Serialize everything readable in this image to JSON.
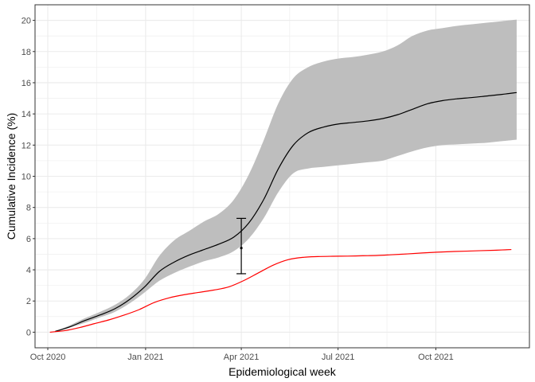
{
  "chart_data": {
    "type": "line",
    "title": "",
    "xlabel": "Epidemiological week",
    "ylabel": "Cumulative Incidence (%)",
    "x_ticks": [
      "2020-10-01",
      "2021-01-01",
      "2021-04-01",
      "2021-07-01",
      "2021-10-01"
    ],
    "x_tick_labels": [
      "Oct 2020",
      "Jan 2021",
      "Apr 2021",
      "Jul 2021",
      "Oct 2021"
    ],
    "xlim": [
      "2020-09-19",
      "2021-12-28"
    ],
    "y_ticks": [
      0,
      2,
      4,
      6,
      8,
      10,
      12,
      14,
      16,
      18,
      20
    ],
    "y_tick_labels": [
      "0",
      "2",
      "4",
      "6",
      "8",
      "10",
      "12",
      "14",
      "16",
      "18",
      "20"
    ],
    "ylim": [
      -1.0,
      21.0
    ],
    "grid": true,
    "legend": "none",
    "colors": {
      "series_black": "#000000",
      "series_red": "#ff0000",
      "ribbon": "#bebebe",
      "grid": "#ebebeb",
      "border": "#333333"
    },
    "series": [
      {
        "color": "#000000",
        "x": [
          "2020-10-08",
          "2020-10-22",
          "2020-11-05",
          "2020-11-19",
          "2020-12-03",
          "2020-12-17",
          "2020-12-31",
          "2021-01-14",
          "2021-01-28",
          "2021-02-11",
          "2021-02-25",
          "2021-03-11",
          "2021-03-25",
          "2021-04-08",
          "2021-04-22",
          "2021-05-06",
          "2021-05-20",
          "2021-06-03",
          "2021-06-17",
          "2021-07-01",
          "2021-07-15",
          "2021-07-29",
          "2021-08-12",
          "2021-08-26",
          "2021-09-09",
          "2021-09-23",
          "2021-10-07",
          "2021-10-21",
          "2021-11-04",
          "2021-11-18",
          "2021-12-02",
          "2021-12-16"
        ],
        "y": [
          0.05,
          0.35,
          0.75,
          1.1,
          1.5,
          2.1,
          2.9,
          3.9,
          4.5,
          4.95,
          5.3,
          5.65,
          6.1,
          7.0,
          8.5,
          10.5,
          12.0,
          12.8,
          13.15,
          13.35,
          13.45,
          13.55,
          13.7,
          13.95,
          14.3,
          14.65,
          14.85,
          14.97,
          15.05,
          15.15,
          15.25,
          15.37
        ]
      },
      {
        "color": "#ff0000",
        "x": [
          "2020-10-03",
          "2020-10-17",
          "2020-10-31",
          "2020-11-14",
          "2020-11-28",
          "2020-12-12",
          "2020-12-26",
          "2021-01-09",
          "2021-01-23",
          "2021-02-06",
          "2021-02-20",
          "2021-03-06",
          "2021-03-20",
          "2021-04-03",
          "2021-04-17",
          "2021-05-01",
          "2021-05-15",
          "2021-05-29",
          "2021-06-12",
          "2021-06-26",
          "2021-07-10",
          "2021-07-24",
          "2021-08-07",
          "2021-08-21",
          "2021-09-04",
          "2021-09-18",
          "2021-10-02",
          "2021-10-16",
          "2021-10-30",
          "2021-11-13",
          "2021-11-27",
          "2021-12-11"
        ],
        "y": [
          0.0,
          0.1,
          0.3,
          0.55,
          0.8,
          1.1,
          1.45,
          1.9,
          2.2,
          2.4,
          2.55,
          2.7,
          2.9,
          3.3,
          3.8,
          4.3,
          4.65,
          4.8,
          4.85,
          4.87,
          4.88,
          4.9,
          4.92,
          4.97,
          5.02,
          5.08,
          5.13,
          5.17,
          5.2,
          5.23,
          5.26,
          5.3
        ]
      }
    ],
    "ribbon": {
      "color": "#bebebe",
      "x": [
        "2020-10-08",
        "2020-10-22",
        "2020-11-05",
        "2020-11-19",
        "2020-12-03",
        "2020-12-17",
        "2020-12-31",
        "2021-01-14",
        "2021-01-28",
        "2021-02-11",
        "2021-02-25",
        "2021-03-11",
        "2021-03-25",
        "2021-04-08",
        "2021-04-22",
        "2021-05-06",
        "2021-05-20",
        "2021-06-03",
        "2021-06-17",
        "2021-07-01",
        "2021-07-15",
        "2021-07-29",
        "2021-08-12",
        "2021-08-26",
        "2021-09-09",
        "2021-09-23",
        "2021-10-07",
        "2021-10-21",
        "2021-11-04",
        "2021-11-18",
        "2021-12-02",
        "2021-12-16"
      ],
      "ymin": [
        0.0,
        0.3,
        0.6,
        0.95,
        1.3,
        1.85,
        2.55,
        3.3,
        3.8,
        4.2,
        4.55,
        4.8,
        5.2,
        6.0,
        7.3,
        9.0,
        10.2,
        10.5,
        10.6,
        10.7,
        10.8,
        10.9,
        11.0,
        11.3,
        11.6,
        11.85,
        12.0,
        12.05,
        12.1,
        12.15,
        12.25,
        12.35
      ],
      "ymax": [
        0.05,
        0.45,
        0.9,
        1.3,
        1.75,
        2.4,
        3.4,
        4.9,
        5.9,
        6.5,
        7.1,
        7.6,
        8.5,
        10.1,
        12.3,
        14.7,
        16.3,
        17.0,
        17.35,
        17.55,
        17.65,
        17.8,
        18.0,
        18.4,
        19.0,
        19.35,
        19.5,
        19.65,
        19.75,
        19.85,
        19.95,
        20.05
      ]
    },
    "errorbar": {
      "color": "#000000",
      "x": "2021-04-01",
      "y": 5.4,
      "ymin": 3.75,
      "ymax": 7.3
    }
  }
}
